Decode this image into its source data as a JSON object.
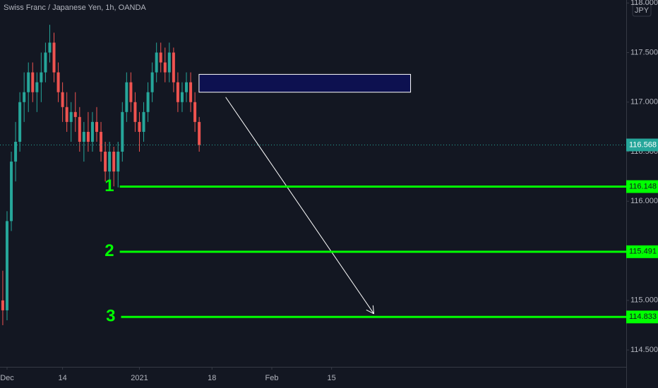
{
  "chart_data": {
    "type": "candlestick",
    "title": "Swiss Franc / Japanese Yen, 1h, OANDA",
    "currency": "JPY",
    "up_color": "#26a69a",
    "down_color": "#ef5350",
    "x": [
      -1,
      0,
      1,
      2,
      3,
      4,
      5,
      6,
      7,
      8,
      9,
      10,
      11,
      12,
      13,
      14,
      15,
      16,
      17,
      18,
      19,
      20,
      21,
      22,
      23,
      24,
      25,
      26,
      27,
      28,
      29,
      30,
      31,
      32,
      33,
      34,
      35,
      36,
      37,
      38,
      39,
      40,
      41,
      42,
      43,
      44,
      45
    ],
    "open": [
      115.0,
      114.9,
      115.8,
      116.4,
      116.6,
      117.0,
      117.1,
      117.3,
      117.1,
      117.2,
      117.3,
      117.5,
      117.6,
      117.3,
      117.1,
      116.95,
      116.8,
      116.9,
      116.85,
      116.6,
      116.7,
      116.6,
      116.8,
      116.7,
      116.5,
      116.3,
      116.5,
      116.3,
      116.5,
      116.9,
      117.2,
      117.0,
      116.8,
      116.7,
      116.9,
      117.1,
      117.3,
      117.5,
      117.4,
      117.3,
      117.5,
      117.2,
      117.0,
      117.1,
      117.2,
      117.0,
      116.8
    ],
    "high": [
      115.3,
      115.9,
      116.5,
      116.8,
      117.1,
      117.3,
      117.4,
      117.4,
      117.3,
      117.5,
      117.6,
      117.78,
      117.7,
      117.4,
      117.2,
      117.1,
      117.0,
      117.1,
      116.95,
      116.8,
      116.9,
      116.9,
      116.95,
      116.8,
      116.6,
      116.6,
      116.55,
      116.6,
      117.0,
      117.3,
      117.3,
      117.1,
      116.9,
      117.0,
      117.2,
      117.4,
      117.6,
      117.6,
      117.55,
      117.6,
      117.55,
      117.3,
      117.2,
      117.3,
      117.3,
      117.1,
      116.85
    ],
    "low": [
      114.75,
      114.8,
      115.7,
      116.2,
      116.5,
      116.8,
      116.9,
      117.0,
      116.9,
      117.0,
      117.2,
      117.4,
      117.2,
      117.0,
      116.8,
      116.7,
      116.6,
      116.7,
      116.5,
      116.4,
      116.5,
      116.5,
      116.6,
      116.4,
      116.2,
      116.2,
      116.15,
      116.14,
      116.4,
      116.8,
      116.9,
      116.7,
      116.5,
      116.6,
      116.8,
      117.0,
      117.2,
      117.3,
      117.2,
      117.2,
      117.1,
      116.9,
      116.9,
      117.0,
      116.9,
      116.7,
      116.5
    ],
    "close": [
      114.9,
      115.8,
      116.4,
      116.6,
      117.0,
      117.1,
      117.3,
      117.1,
      117.2,
      117.3,
      117.5,
      117.6,
      117.3,
      117.1,
      116.95,
      116.8,
      116.9,
      116.85,
      116.6,
      116.7,
      116.6,
      116.8,
      116.7,
      116.5,
      116.3,
      116.5,
      116.3,
      116.5,
      116.9,
      117.2,
      117.0,
      116.8,
      116.7,
      116.9,
      117.1,
      117.3,
      117.5,
      117.4,
      117.3,
      117.5,
      117.2,
      117.0,
      117.1,
      117.2,
      117.0,
      116.8,
      116.568
    ],
    "last_price": 116.568,
    "xlim": [
      -1.65,
      145
    ],
    "xticks": [
      {
        "value": 0,
        "label": "Dec"
      },
      {
        "value": 13,
        "label": "14"
      },
      {
        "value": 31,
        "label": "2021"
      },
      {
        "value": 48,
        "label": "18"
      },
      {
        "value": 62,
        "label": "Feb"
      },
      {
        "value": 76,
        "label": "15"
      }
    ],
    "ylim": [
      114.33,
      118.03
    ],
    "yticks": [
      {
        "value": 118,
        "label": "118.000"
      },
      {
        "value": 117.5,
        "label": "117.500"
      },
      {
        "value": 117,
        "label": "117.000"
      },
      {
        "value": 116.5,
        "label": "116.500"
      },
      {
        "value": 116,
        "label": "116.000"
      },
      {
        "value": 115,
        "label": "115.000"
      },
      {
        "value": 114.5,
        "label": "114.500"
      }
    ],
    "levels": [
      {
        "name": "1",
        "value": 116.148,
        "x_start": 26.4,
        "color": "#00ff00"
      },
      {
        "name": "2",
        "value": 115.491,
        "x_start": 26.4,
        "color": "#00ff00"
      },
      {
        "name": "3",
        "value": 114.833,
        "x_start": 26.7,
        "color": "#00ff00"
      }
    ],
    "zone": {
      "x": [
        44.96,
        94.5
      ],
      "y": [
        117.1,
        117.28
      ],
      "color": "#0d1150"
    },
    "arrow": {
      "x": [
        51.2,
        85.9
      ],
      "y": [
        117.05,
        114.865
      ]
    }
  }
}
